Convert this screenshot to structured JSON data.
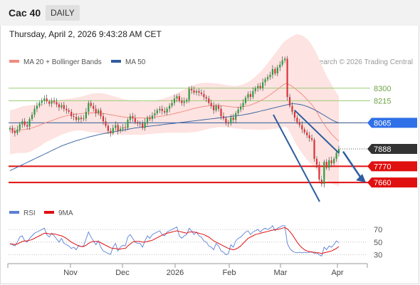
{
  "header": {
    "symbol": "Cac 40",
    "timeframe": "DAILY"
  },
  "datetime": "Thursday, April 2, 2026 9:43:28 AM CET",
  "legend": [
    {
      "label": "MA 20 + Bollinger Bands",
      "color": "#f08a80"
    },
    {
      "label": "MA 50",
      "color": "#2f5d9e"
    }
  ],
  "copyright": "Research © 2026 Trading Central",
  "colors": {
    "up": "#2e9e3f",
    "down": "#d9333a",
    "resistance": "#9ccc74",
    "support": "#e01010",
    "ma50": "#2f5d9e",
    "ma20": "#f08a80",
    "band": "#fde3e1",
    "rsi": "#5b7fd6",
    "rsi_ma": "#e01010",
    "current": "#333333",
    "ma_tag": "#2f6fe8"
  },
  "chart_data": [
    {
      "type": "candlestick",
      "ylim": [
        7530,
        8560
      ],
      "x_labels": [
        "Nov",
        "Dec",
        "2026",
        "Feb",
        "Mar",
        "Apr"
      ],
      "levels": [
        {
          "value": 8300,
          "label": "8300",
          "kind": "resistance"
        },
        {
          "value": 8215,
          "label": "8215",
          "kind": "resistance"
        },
        {
          "value": 8065,
          "label": "8065",
          "kind": "ma50"
        },
        {
          "value": 7888,
          "label": "7888",
          "kind": "current"
        },
        {
          "value": 7770,
          "label": "7770",
          "kind": "support"
        },
        {
          "value": 7660,
          "label": "7660",
          "kind": "support"
        }
      ],
      "closes": [
        8030,
        8010,
        7995,
        8020,
        8055,
        8075,
        8050,
        8040,
        8090,
        8120,
        8160,
        8180,
        8200,
        8215,
        8230,
        8210,
        8195,
        8215,
        8205,
        8190,
        8170,
        8185,
        8160,
        8150,
        8140,
        8110,
        8105,
        8085,
        8100,
        8090,
        8095,
        8140,
        8200,
        8180,
        8160,
        8130,
        8150,
        8110,
        8075,
        8045,
        8010,
        7995,
        8030,
        8050,
        8010,
        8025,
        8035,
        8030,
        8085,
        8110,
        8095,
        8070,
        8060,
        8060,
        8030,
        8070,
        8100,
        8090,
        8115,
        8130,
        8150,
        8160,
        8145,
        8135,
        8160,
        8180,
        8200,
        8230,
        8245,
        8215,
        8200,
        8210,
        8220,
        8295,
        8285,
        8270,
        8280,
        8270,
        8260,
        8240,
        8230,
        8200,
        8180,
        8150,
        8180,
        8160,
        8110,
        8095,
        8065,
        8060,
        8100,
        8085,
        8130,
        8155,
        8175,
        8200,
        8235,
        8260,
        8240,
        8280,
        8300,
        8315,
        8300,
        8340,
        8360,
        8375,
        8390,
        8430,
        8400,
        8440,
        8460,
        8490,
        8500,
        8240,
        8180,
        8140,
        8100,
        8070,
        8050,
        8020,
        8000,
        7980,
        7960,
        7950,
        7820,
        7780,
        7680,
        7650,
        7800,
        7760,
        7810,
        7790,
        7820,
        7860,
        7888
      ],
      "ma20": [
        8000,
        8004,
        8008,
        8012,
        8015,
        8018,
        8020,
        8022,
        8026,
        8030,
        8036,
        8042,
        8048,
        8055,
        8062,
        8068,
        8074,
        8080,
        8086,
        8092,
        8098,
        8104,
        8108,
        8112,
        8116,
        8119,
        8122,
        8124,
        8126,
        8128,
        8129,
        8130,
        8131,
        8132,
        8132,
        8132,
        8131,
        8130,
        8128,
        8126,
        8123,
        8120,
        8117,
        8114,
        8111,
        8108,
        8105,
        8103,
        8102,
        8101,
        8100,
        8099,
        8098,
        8097,
        8097,
        8098,
        8099,
        8100,
        8102,
        8104,
        8106,
        8108,
        8111,
        8114,
        8117,
        8120,
        8124,
        8128,
        8132,
        8136,
        8140,
        8144,
        8148,
        8153,
        8158,
        8162,
        8166,
        8170,
        8173,
        8176,
        8178,
        8180,
        8181,
        8182,
        8183,
        8183,
        8182,
        8180,
        8178,
        8176,
        8174,
        8172,
        8171,
        8171,
        8172,
        8174,
        8177,
        8181,
        8186,
        8192,
        8199,
        8206,
        8214,
        8223,
        8233,
        8244,
        8256,
        8268,
        8280,
        8292,
        8305,
        8318,
        8330,
        8330,
        8322,
        8312,
        8300,
        8287,
        8273,
        8258,
        8242,
        8225,
        8207,
        8188,
        8165,
        8140,
        8110,
        8080,
        8055,
        8030,
        8010,
        7990,
        7972,
        7955,
        7940
      ],
      "bb_width": [
        150,
        150,
        150,
        152,
        155,
        158,
        160,
        160,
        158,
        155,
        150,
        148,
        145,
        140,
        135,
        132,
        130,
        128,
        126,
        124,
        122,
        120,
        118,
        116,
        114,
        112,
        112,
        112,
        113,
        115,
        118,
        122,
        126,
        130,
        132,
        134,
        135,
        136,
        136,
        135,
        134,
        132,
        130,
        128,
        126,
        124,
        122,
        120,
        118,
        117,
        116,
        115,
        114,
        114,
        113,
        113,
        112,
        112,
        112,
        112,
        113,
        114,
        116,
        118,
        120,
        123,
        126,
        130,
        134,
        138,
        142,
        146,
        150,
        155,
        158,
        160,
        162,
        162,
        162,
        160,
        158,
        156,
        154,
        152,
        150,
        148,
        146,
        145,
        144,
        143,
        143,
        143,
        144,
        146,
        148,
        152,
        156,
        160,
        166,
        172,
        180,
        188,
        196,
        205,
        215,
        225,
        235,
        245,
        255,
        265,
        275,
        285,
        290,
        300,
        320,
        340,
        360,
        380,
        390,
        400,
        405,
        410,
        410,
        405,
        400,
        395,
        385,
        375,
        365,
        355,
        345,
        335,
        325,
        315,
        305
      ],
      "ma50": [
        7740,
        7748,
        7756,
        7764,
        7772,
        7780,
        7788,
        7796,
        7804,
        7812,
        7820,
        7828,
        7836,
        7844,
        7852,
        7860,
        7868,
        7876,
        7884,
        7892,
        7900,
        7908,
        7914,
        7920,
        7926,
        7932,
        7938,
        7943,
        7948,
        7953,
        7958,
        7963,
        7968,
        7972,
        7976,
        7980,
        7984,
        7988,
        7991,
        7994,
        7997,
        8000,
        8003,
        8006,
        8009,
        8012,
        8015,
        8018,
        8021,
        8024,
        8027,
        8030,
        8032,
        8034,
        8036,
        8038,
        8040,
        8042,
        8044,
        8046,
        8048,
        8050,
        8052,
        8054,
        8056,
        8058,
        8060,
        8062,
        8064,
        8066,
        8068,
        8070,
        8072,
        8074,
        8076,
        8078,
        8080,
        8082,
        8084,
        8086,
        8088,
        8090,
        8092,
        8094,
        8096,
        8098,
        8100,
        8102,
        8104,
        8106,
        8108,
        8110,
        8112,
        8114,
        8116,
        8119,
        8122,
        8125,
        8128,
        8132,
        8136,
        8140,
        8144,
        8148,
        8152,
        8156,
        8160,
        8164,
        8168,
        8172,
        8176,
        8180,
        8184,
        8188,
        8192,
        8194,
        8194,
        8192,
        8190,
        8186,
        8182,
        8176,
        8170,
        8162,
        8154,
        8145,
        8136,
        8126,
        8116,
        8106,
        8096,
        8086,
        8078,
        8070,
        8065
      ]
    },
    {
      "type": "line",
      "series": [
        {
          "name": "RSI"
        },
        {
          "name": "9MA"
        }
      ],
      "ylim": [
        25,
        78
      ],
      "y_ticks": [
        70,
        50,
        30
      ],
      "rsi": [
        48,
        46,
        44,
        50,
        58,
        60,
        52,
        50,
        56,
        60,
        64,
        66,
        68,
        70,
        72,
        62,
        58,
        64,
        60,
        55,
        50,
        56,
        48,
        46,
        44,
        40,
        42,
        38,
        45,
        43,
        44,
        55,
        66,
        58,
        52,
        46,
        52,
        42,
        36,
        34,
        32,
        31,
        42,
        48,
        36,
        42,
        45,
        44,
        58,
        62,
        56,
        50,
        48,
        48,
        42,
        52,
        60,
        56,
        62,
        64,
        66,
        68,
        62,
        60,
        66,
        68,
        70,
        72,
        74,
        60,
        56,
        60,
        62,
        72,
        68,
        62,
        66,
        60,
        58,
        52,
        50,
        44,
        42,
        38,
        48,
        44,
        36,
        34,
        30,
        32,
        46,
        42,
        52,
        56,
        58,
        62,
        66,
        68,
        62,
        66,
        68,
        70,
        66,
        70,
        72,
        70,
        72,
        76,
        68,
        72,
        74,
        76,
        76,
        48,
        40,
        36,
        34,
        33,
        34,
        33,
        34,
        33,
        34,
        35,
        32,
        33,
        30,
        28,
        42,
        38,
        44,
        42,
        46,
        52,
        49
      ],
      "rsi_ma": [
        47,
        47,
        46,
        47,
        49,
        51,
        52,
        52,
        53,
        54,
        56,
        58,
        60,
        62,
        64,
        64,
        63,
        63,
        63,
        62,
        61,
        60,
        58,
        56,
        53,
        50,
        48,
        46,
        44,
        43,
        43,
        45,
        48,
        50,
        51,
        51,
        51,
        49,
        47,
        45,
        43,
        41,
        40,
        40,
        39,
        39,
        40,
        40,
        44,
        47,
        50,
        51,
        51,
        51,
        50,
        50,
        51,
        52,
        53,
        55,
        57,
        59,
        61,
        63,
        64,
        65,
        66,
        67,
        68,
        67,
        66,
        65,
        64,
        66,
        66,
        66,
        65,
        64,
        63,
        62,
        60,
        58,
        55,
        52,
        50,
        48,
        46,
        44,
        42,
        40,
        39,
        38,
        39,
        41,
        44,
        48,
        52,
        56,
        58,
        60,
        62,
        63,
        64,
        65,
        66,
        67,
        68,
        69,
        70,
        70,
        71,
        72,
        73,
        71,
        67,
        62,
        56,
        50,
        45,
        41,
        38,
        36,
        35,
        34,
        34,
        33,
        33,
        32,
        33,
        34,
        35,
        36,
        38,
        40,
        43
      ]
    }
  ]
}
